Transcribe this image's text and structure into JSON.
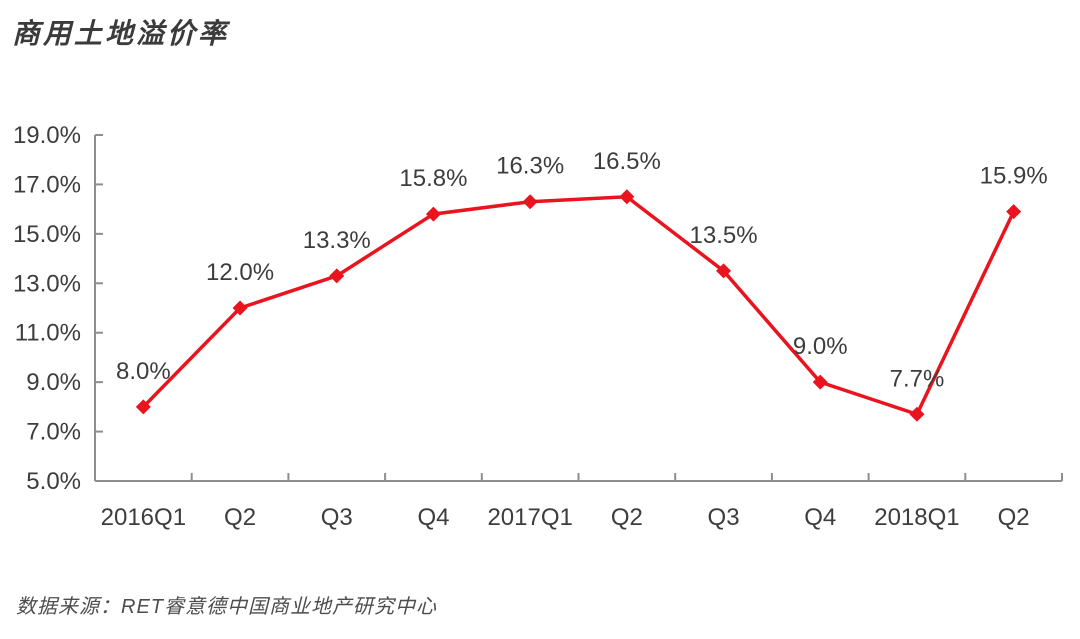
{
  "header": {
    "title": "商用土地溢价率"
  },
  "footer": {
    "source": "数据来源：RET睿意德中国商业地产研究中心"
  },
  "colors": {
    "series_red": "#e9141d",
    "axis_gray": "#8e8e8e",
    "label_dark": "#3d3d3d",
    "source_gray": "#4d4d4d",
    "background": "#ffffff"
  },
  "chart_data": {
    "type": "line",
    "title": "商用土地溢价率",
    "series_name": "商用土地溢价率",
    "categories": [
      "2016Q1",
      "Q2",
      "Q3",
      "Q4",
      "2017Q1",
      "Q2",
      "Q3",
      "Q4",
      "2018Q1",
      "Q2"
    ],
    "values": [
      8.0,
      12.0,
      13.3,
      15.8,
      16.3,
      16.5,
      13.5,
      9.0,
      7.7,
      15.9
    ],
    "point_labels": [
      "8.0%",
      "12.0%",
      "13.3%",
      "15.8%",
      "16.3%",
      "16.5%",
      "13.5%",
      "9.0%",
      "7.7%",
      "15.9%"
    ],
    "xlabel": "",
    "ylabel": "",
    "ylim": [
      5.0,
      19.0
    ],
    "ytick_step": 2.0,
    "ytick_labels": [
      "5.0%",
      "7.0%",
      "9.0%",
      "11.0%",
      "13.0%",
      "15.0%",
      "17.0%",
      "19.0%"
    ],
    "grid": false,
    "legend": "none",
    "marker": "diamond",
    "source": "数据来源：RET睿意德中国商业地产研究中心"
  }
}
